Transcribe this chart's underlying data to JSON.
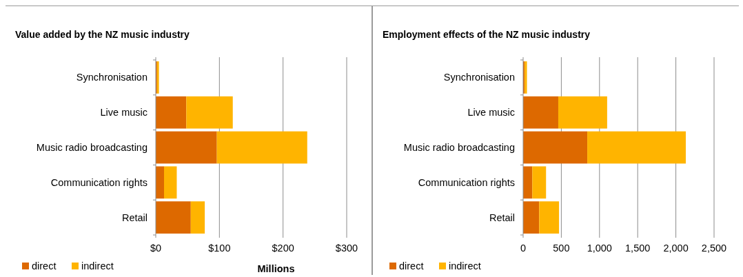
{
  "chart_data": [
    {
      "type": "bar",
      "orientation": "horizontal",
      "stacked": true,
      "title": "Value added by the NZ music industry",
      "xlabel": "Millions",
      "categories": [
        "Synchronisation",
        "Live music",
        "Music radio broadcasting",
        "Communication rights",
        "Retail"
      ],
      "series": [
        {
          "name": "direct",
          "color": "#dd6900",
          "values": [
            2,
            48,
            96,
            13,
            55
          ]
        },
        {
          "name": "indirect",
          "color": "#ffb400",
          "values": [
            3,
            73,
            142,
            20,
            22
          ]
        }
      ],
      "xlim": [
        0,
        300
      ],
      "xticks": [
        {
          "value": 0,
          "label": "$0"
        },
        {
          "value": 100,
          "label": "$100"
        },
        {
          "value": 200,
          "label": "$200"
        },
        {
          "value": 300,
          "label": "$300"
        }
      ],
      "grid": "x",
      "legend": "bottom left"
    },
    {
      "type": "bar",
      "orientation": "horizontal",
      "stacked": true,
      "title": "Employment effects of the NZ music industry",
      "categories": [
        "Synchronisation",
        "Live music",
        "Music radio broadcasting",
        "Communication rights",
        "Retail"
      ],
      "series": [
        {
          "name": "direct",
          "color": "#dd6900",
          "values": [
            20,
            460,
            840,
            120,
            210
          ]
        },
        {
          "name": "indirect",
          "color": "#ffb400",
          "values": [
            30,
            640,
            1290,
            180,
            260
          ]
        }
      ],
      "xlim": [
        0,
        2500
      ],
      "xticks": [
        0,
        500,
        {
          "value": 1000,
          "label": "1,000"
        },
        {
          "value": 1500,
          "label": "1,500"
        },
        {
          "value": 2000,
          "label": "2,000"
        },
        {
          "value": 2500,
          "label": "2,500"
        }
      ],
      "grid": "x",
      "legend": "bottom left"
    }
  ]
}
